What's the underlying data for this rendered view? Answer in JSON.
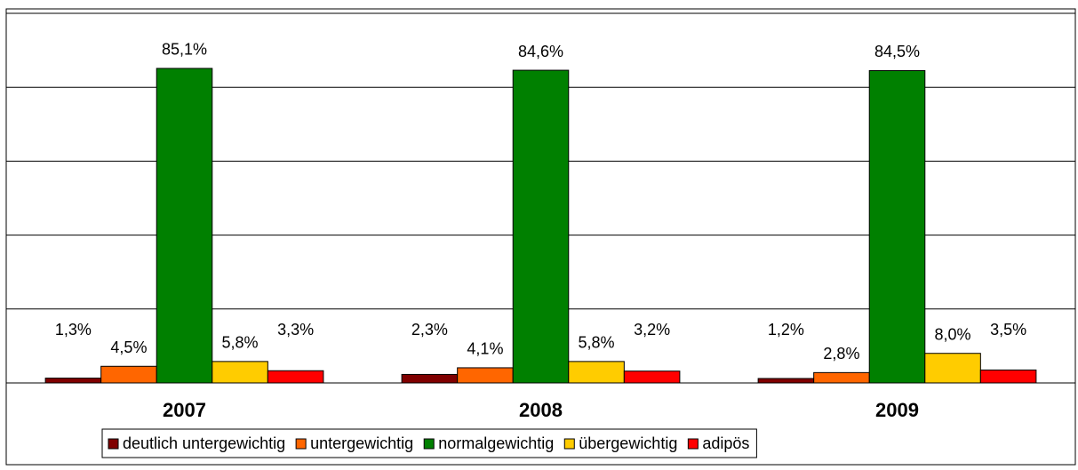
{
  "chart_data": {
    "type": "bar",
    "categories": [
      "2007",
      "2008",
      "2009"
    ],
    "series": [
      {
        "name": "deutlich untergewichtig",
        "color": "#800000",
        "values": [
          1.3,
          2.3,
          1.2
        ],
        "value_labels": [
          "1,3%",
          "2,3%",
          "1,2%"
        ]
      },
      {
        "name": "untergewichtig",
        "color": "#ff6600",
        "values": [
          4.5,
          4.1,
          2.8
        ],
        "value_labels": [
          "4,5%",
          "4,1%",
          "2,8%"
        ]
      },
      {
        "name": "normalgewichtig",
        "color": "#008000",
        "values": [
          85.1,
          84.6,
          84.5
        ],
        "value_labels": [
          "85,1%",
          "84,6%",
          "84,5%"
        ]
      },
      {
        "name": "übergewichtig",
        "color": "#ffcc00",
        "values": [
          5.8,
          5.8,
          8.0
        ],
        "value_labels": [
          "5,8%",
          "5,8%",
          "8,0%"
        ]
      },
      {
        "name": "adipös",
        "color": "#ff0000",
        "values": [
          3.3,
          3.2,
          3.5
        ],
        "value_labels": [
          "3,3%",
          "3,2%",
          "3,5%"
        ]
      }
    ],
    "ylim": [
      0,
      100
    ],
    "yticks": [
      0,
      20,
      40,
      60,
      80,
      100
    ],
    "grid": true,
    "legend": "bottom"
  }
}
